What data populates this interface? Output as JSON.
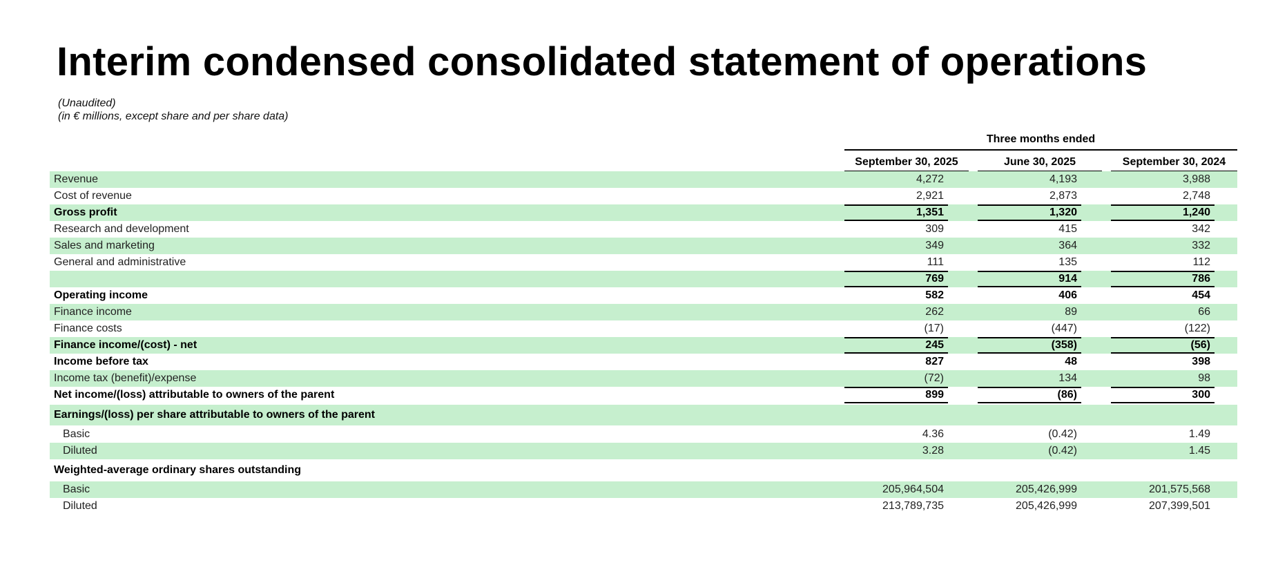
{
  "title": "Interim condensed consolidated statement of operations",
  "subtitle_lines": [
    "(Unaudited)",
    "(in € millions, except share and per share data)"
  ],
  "period_header": "Three months ended",
  "columns": [
    "September 30, 2025",
    "June 30, 2025",
    "September 30, 2024"
  ],
  "rows": [
    {
      "label": "Revenue",
      "values": [
        "4,272",
        "4,193",
        "3,988"
      ]
    },
    {
      "label": "Cost of revenue",
      "values": [
        "2,921",
        "2,873",
        "2,748"
      ]
    },
    {
      "label": "Gross profit",
      "values": [
        "1,351",
        "1,320",
        "1,240"
      ]
    },
    {
      "label": "Research and development",
      "values": [
        "309",
        "415",
        "342"
      ]
    },
    {
      "label": "Sales and marketing",
      "values": [
        "349",
        "364",
        "332"
      ]
    },
    {
      "label": "General and administrative",
      "values": [
        "111",
        "135",
        "112"
      ]
    },
    {
      "label": "",
      "values": [
        "769",
        "914",
        "786"
      ]
    },
    {
      "label": "Operating income",
      "values": [
        "582",
        "406",
        "454"
      ]
    },
    {
      "label": "Finance income",
      "values": [
        "262",
        "89",
        "66"
      ]
    },
    {
      "label": "Finance costs",
      "values": [
        "(17)",
        "(447)",
        "(122)"
      ]
    },
    {
      "label": "Finance income/(cost) - net",
      "values": [
        "245",
        "(358)",
        "(56)"
      ]
    },
    {
      "label": "Income before tax",
      "values": [
        "827",
        "48",
        "398"
      ]
    },
    {
      "label": "Income tax (benefit)/expense",
      "values": [
        "(72)",
        "134",
        "98"
      ]
    },
    {
      "label": "Net income/(loss) attributable to owners of the parent",
      "values": [
        "899",
        "(86)",
        "300"
      ]
    },
    {
      "label": "Earnings/(loss) per share attributable to owners of the parent",
      "values": [
        "",
        "",
        ""
      ]
    },
    {
      "label": "Basic",
      "values": [
        "4.36",
        "(0.42)",
        "1.49"
      ]
    },
    {
      "label": "Diluted",
      "values": [
        "3.28",
        "(0.42)",
        "1.45"
      ]
    },
    {
      "label": "Weighted-average ordinary shares outstanding",
      "values": [
        "",
        "",
        ""
      ]
    },
    {
      "label": "Basic",
      "values": [
        "205,964,504",
        "205,426,999",
        "201,575,568"
      ]
    },
    {
      "label": "Diluted",
      "values": [
        "213,789,735",
        "205,426,999",
        "207,399,501"
      ]
    }
  ]
}
